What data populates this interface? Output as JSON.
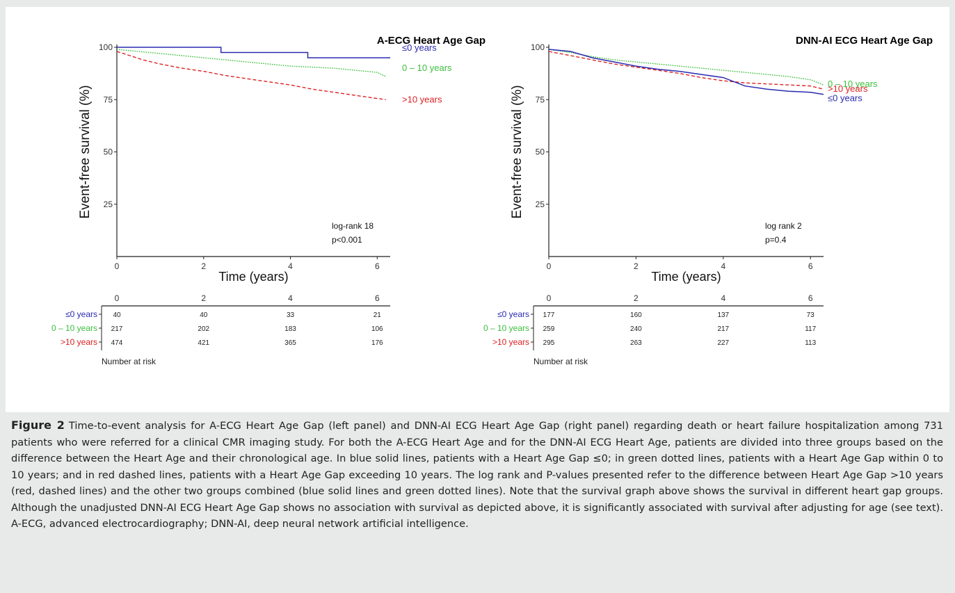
{
  "figure": {
    "label": "Figure 2",
    "caption": "Time-to-event analysis for A-ECG Heart Age Gap (left panel) and DNN-AI ECG Heart Age Gap (right panel) regarding death or heart failure hospitalization among 731 patients who were referred for a clinical CMR imaging study. For both the A-ECG Heart Age and for the DNN-AI ECG Heart Age, patients are divided into three groups based on the difference between the Heart Age and their chronological age. In blue solid lines, patients with a Heart Age Gap ≤0; in green dotted lines, patients with a Heart Age Gap within 0 to 10 years; and in red dashed lines, patients with a Heart Age Gap exceeding 10 years. The log rank and P-values presented refer to the difference between Heart Age Gap >10 years (red, dashed lines) and the other two groups combined (blue solid lines and green dotted lines). Note that the survival graph above shows the survival in different heart gap groups. Although the unadjusted DNN-AI ECG Heart Age Gap shows no association with survival as depicted above, it is significantly associated with survival after adjusting for age (see text). A-ECG, advanced electrocardiography; DNN-AI, deep neural network artificial intelligence."
  },
  "colors": {
    "blue": "#2a2ab0",
    "green": "#3dbd3d",
    "red": "#dd2222",
    "axis": "#222222"
  },
  "chart_data": [
    {
      "type": "line",
      "title": "A-ECG Heart Age Gap",
      "xlabel": "Time (years)",
      "ylabel": "Event-free survival (%)",
      "xlim": [
        0,
        6.3
      ],
      "ylim": [
        0,
        100
      ],
      "xticks": [
        0,
        2,
        4,
        6
      ],
      "yticks": [
        25,
        50,
        75,
        100
      ],
      "annotation": [
        "log-rank 18",
        "p<0.001"
      ],
      "series": [
        {
          "name": "≤0 years",
          "color": "blue",
          "style": "solid",
          "x": [
            0,
            2.4,
            2.4,
            4.4,
            4.4,
            6.3
          ],
          "y": [
            100,
            100,
            97.5,
            97.5,
            95,
            95
          ]
        },
        {
          "name": "0 – 10 years",
          "color": "green",
          "style": "dotted",
          "x": [
            0,
            0.5,
            1,
            1.5,
            2,
            2.5,
            3,
            3.5,
            4,
            4.5,
            5,
            5.5,
            6,
            6.2
          ],
          "y": [
            99,
            98,
            97,
            96,
            95,
            94,
            93,
            92,
            91,
            90.5,
            90,
            89,
            88,
            86
          ]
        },
        {
          "name": ">10 years",
          "color": "red",
          "style": "dashed",
          "x": [
            0,
            0.3,
            0.6,
            1,
            1.5,
            2,
            2.5,
            3,
            3.5,
            4,
            4.5,
            5,
            5.5,
            6,
            6.2
          ],
          "y": [
            98,
            96,
            94,
            92,
            90,
            88.5,
            86.5,
            85,
            83.5,
            82,
            80,
            78.5,
            77,
            75.5,
            75
          ]
        }
      ],
      "risk_table": {
        "times": [
          0,
          2,
          4,
          6
        ],
        "rows": [
          {
            "label": "≤0 years",
            "color": "blue",
            "values": [
              40,
              40,
              33,
              21
            ]
          },
          {
            "label": "0 – 10 years",
            "color": "green",
            "values": [
              217,
              202,
              183,
              106
            ]
          },
          {
            "label": ">10 years",
            "color": "red",
            "values": [
              474,
              421,
              365,
              176
            ]
          }
        ],
        "caption": "Number at risk"
      }
    },
    {
      "type": "line",
      "title": "DNN-AI ECG Heart Age Gap",
      "xlabel": "Time (years)",
      "ylabel": "Event-free survival (%)",
      "xlim": [
        0,
        6.3
      ],
      "ylim": [
        0,
        100
      ],
      "xticks": [
        0,
        2,
        4,
        6
      ],
      "yticks": [
        25,
        50,
        75,
        100
      ],
      "annotation": [
        "log rank 2",
        "p=0.4"
      ],
      "series": [
        {
          "name": "0 – 10 years",
          "color": "green",
          "style": "dotted",
          "x": [
            0,
            0.5,
            1,
            1.5,
            2,
            2.5,
            3,
            3.5,
            4,
            4.5,
            5,
            5.5,
            6,
            6.3
          ],
          "y": [
            99,
            97.5,
            95.5,
            94,
            93,
            92,
            91,
            90,
            89,
            88,
            87,
            86,
            84.5,
            82
          ]
        },
        {
          "name": ">10 years",
          "color": "red",
          "style": "dashed",
          "x": [
            0,
            0.5,
            1,
            1.5,
            2,
            2.5,
            3,
            3.5,
            4,
            4.5,
            5,
            5.5,
            6,
            6.3
          ],
          "y": [
            98,
            96,
            94,
            92,
            90.5,
            89,
            87.5,
            85.5,
            84,
            83,
            82.5,
            82,
            81.5,
            80
          ]
        },
        {
          "name": "≤0 years",
          "color": "blue",
          "style": "solid",
          "x": [
            0,
            0.5,
            1,
            1.5,
            2,
            2.5,
            3,
            3.5,
            4,
            4.5,
            5,
            5.5,
            6,
            6.3
          ],
          "y": [
            99,
            98,
            95,
            93,
            91,
            89.5,
            88.5,
            87,
            85.5,
            81.5,
            80,
            79,
            78.5,
            77.5
          ]
        }
      ],
      "risk_table": {
        "times": [
          0,
          2,
          4,
          6
        ],
        "rows": [
          {
            "label": "≤0 years",
            "color": "blue",
            "values": [
              177,
              160,
              137,
              73
            ]
          },
          {
            "label": "0 – 10 years",
            "color": "green",
            "values": [
              259,
              240,
              217,
              117
            ]
          },
          {
            "label": ">10 years",
            "color": "red",
            "values": [
              295,
              263,
              227,
              113
            ]
          }
        ],
        "caption": "Number at risk"
      }
    }
  ]
}
